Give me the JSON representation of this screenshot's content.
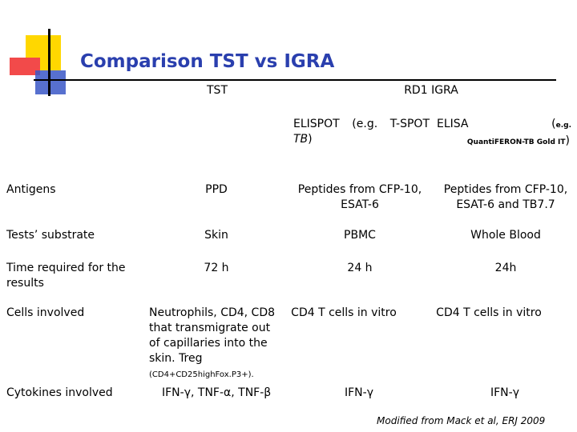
{
  "title": "Comparison TST vs IGRA",
  "headers": {
    "tst": "TST",
    "rd1": "RD1 IGRA",
    "elispot_main": "ELISPOT (e.g. T-SPOT",
    "elispot_tb": "TB",
    "elispot_close": ")",
    "elisa_main": "ELISA (",
    "elisa_eg": "e.g.",
    "elisa_product": "Quanti",
    "elisa_product_b": "FERON-TB Gold IT",
    "elisa_close": ")"
  },
  "rows": [
    {
      "label": "Antigens",
      "tst": "PPD",
      "elispot": "Peptides from CFP-10, ESAT-6",
      "elisa": "Peptides from CFP-10, ESAT-6 and TB7.7"
    },
    {
      "label": "Tests’ substrate",
      "tst": "Skin",
      "elispot": "PBMC",
      "elisa": "Whole Blood"
    },
    {
      "label": "Time required for the results",
      "tst": "72 h",
      "elispot": "24 h",
      "elisa": "24h"
    },
    {
      "label": "Cells involved",
      "tst": "Neutrophils, CD4, CD8 that transmigrate out of capillaries into the skin. Treg",
      "tst_extra": "(CD4+CD25highFox.P3+).",
      "elispot": "CD4 T cells in vitro",
      "elisa": "CD4 T cells in vitro"
    },
    {
      "label": "Cytokines involved",
      "tst": "IFN-γ, TNF-α, TNF-β",
      "elispot": "IFN-γ",
      "elisa": "IFN-γ"
    }
  ],
  "credit": "Modified from Mack et al, ERJ 2009",
  "colors": {
    "title": "#2a3fae",
    "yellow": "#ffd700",
    "red": "#f24a4a",
    "blue": "#3a57c7"
  }
}
